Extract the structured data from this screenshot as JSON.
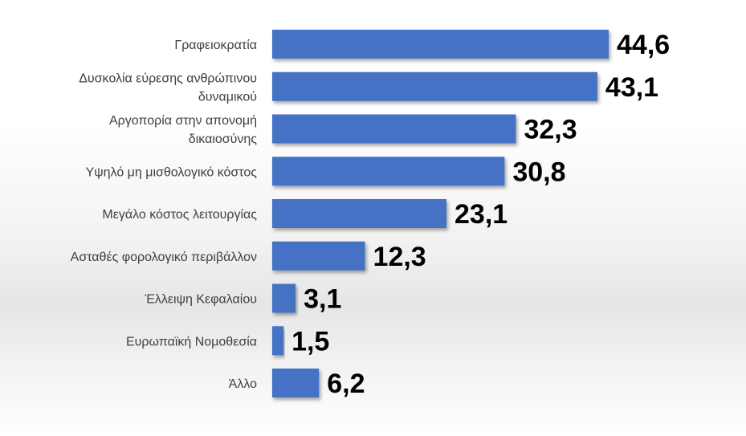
{
  "chart_data": {
    "type": "bar",
    "orientation": "horizontal",
    "categories": [
      "Γραφειοκρατία",
      "Δυσκολία εύρεσης ανθρώπινου δυναμικού",
      "Αργοπορία στην απονομή δικαιοσύνης",
      "Υψηλό μη μισθολογικό κόστος",
      "Μεγάλο κόστος λειτουργίας",
      "Ασταθές φορολογικό περιβάλλον",
      "Έλλειψη Κεφαλαίου",
      "Ευρωπαϊκή Νομοθεσία",
      "Άλλο"
    ],
    "category_lines": [
      [
        "Γραφειοκρατία"
      ],
      [
        "Δυσκολία εύρεσης ανθρώπινου",
        "δυναμικού"
      ],
      [
        "Αργοπορία στην απονομή",
        "δικαιοσύνης"
      ],
      [
        "Υψηλό μη μισθολογικό κόστος"
      ],
      [
        "Μεγάλο κόστος λειτουργίας"
      ],
      [
        "Ασταθές φορολογικό περιβάλλον"
      ],
      [
        "Έλλειψη Κεφαλαίου"
      ],
      [
        "Ευρωπαϊκή Νομοθεσία"
      ],
      [
        "Άλλο"
      ]
    ],
    "values": [
      44.6,
      43.1,
      32.3,
      30.8,
      23.1,
      12.3,
      3.1,
      1.5,
      6.2
    ],
    "value_labels": [
      "44,6",
      "43,1",
      "32,3",
      "30,8",
      "23,1",
      "12,3",
      "3,1",
      "1,5",
      "6,2"
    ],
    "bar_color": "#4472C4",
    "xlim": [
      0,
      44.6
    ],
    "grid": false,
    "legend": "none"
  }
}
